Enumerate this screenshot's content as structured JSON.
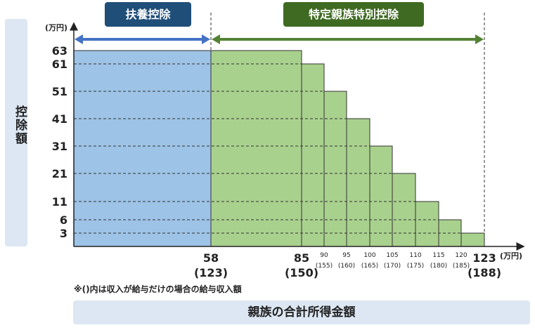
{
  "title": "",
  "banners": {
    "fuyou": "扶養控除",
    "tokutei": "特定親族特別控除"
  },
  "y_axis_label": "控除額",
  "x_axis_label": "親族の合計所得金額",
  "y_unit": "(万円)",
  "x_unit": "(万円)",
  "note": "※()内は収入が給与だけの場合の給与収入額",
  "colors": {
    "fuyou_fill": "#9dc3e6",
    "tokutei_fill": "#a9d18e",
    "fuyou_arrow": "#4472c4",
    "tokutei_arrow": "#548235",
    "fuyou_banner": "#1f4e79",
    "tokutei_banner": "#3f6a22",
    "label_box": "#dce7f3"
  },
  "chart_data": {
    "type": "bar",
    "title": "",
    "xlabel": "親族の合計所得金額",
    "ylabel": "控除額",
    "y_unit": "(万円)",
    "x_unit": "(万円)",
    "y_ticks": [
      3,
      6,
      11,
      21,
      31,
      41,
      51,
      61,
      63
    ],
    "series": [
      {
        "name": "扶養控除",
        "segments": [
          {
            "x_from": 0,
            "x_to": 58,
            "value": 63
          }
        ]
      },
      {
        "name": "特定親族特別控除",
        "segments": [
          {
            "x_from": 58,
            "x_to": 85,
            "value": 63
          },
          {
            "x_from": 85,
            "x_to": 90,
            "value": 61
          },
          {
            "x_from": 90,
            "x_to": 95,
            "value": 51
          },
          {
            "x_from": 95,
            "x_to": 100,
            "value": 41
          },
          {
            "x_from": 100,
            "x_to": 105,
            "value": 31
          },
          {
            "x_from": 105,
            "x_to": 110,
            "value": 21
          },
          {
            "x_from": 110,
            "x_to": 115,
            "value": 11
          },
          {
            "x_from": 115,
            "x_to": 120,
            "value": 6
          },
          {
            "x_from": 120,
            "x_to": 123,
            "value": 3
          }
        ]
      }
    ],
    "x_ticks": [
      {
        "value": 58,
        "label": "58",
        "sub": "(123)",
        "major": true
      },
      {
        "value": 85,
        "label": "85",
        "sub": "(150)",
        "major": true
      },
      {
        "value": 90,
        "label": "90",
        "sub": "(155)",
        "major": false
      },
      {
        "value": 95,
        "label": "95",
        "sub": "(160)",
        "major": false
      },
      {
        "value": 100,
        "label": "100",
        "sub": "(165)",
        "major": false
      },
      {
        "value": 105,
        "label": "105",
        "sub": "(170)",
        "major": false
      },
      {
        "value": 110,
        "label": "110",
        "sub": "(175)",
        "major": false
      },
      {
        "value": 115,
        "label": "115",
        "sub": "(180)",
        "major": false
      },
      {
        "value": 120,
        "label": "120",
        "sub": "(185)",
        "major": false
      },
      {
        "value": 123,
        "label": "123",
        "sub": "(188)",
        "major": true
      }
    ],
    "ranges": {
      "fuyou": [
        0,
        58
      ],
      "tokutei": [
        58,
        123
      ]
    }
  }
}
